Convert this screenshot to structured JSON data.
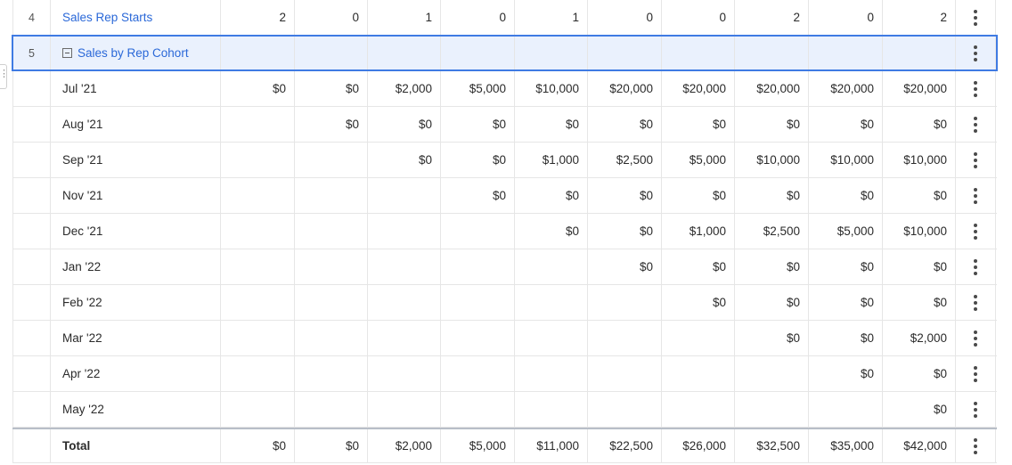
{
  "rows_top": [
    {
      "num": "4",
      "name": "Sales Rep Starts",
      "values": [
        "2",
        "0",
        "1",
        "0",
        "1",
        "0",
        "0",
        "2",
        "0",
        "2"
      ]
    },
    {
      "num": "5",
      "name": "Sales by Rep Cohort",
      "values": [
        "",
        "",
        "",
        "",
        "",
        "",
        "",
        "",
        "",
        ""
      ],
      "selected": true
    }
  ],
  "cohorts": [
    {
      "name": "Jul '21",
      "values": [
        "$0",
        "$0",
        "$2,000",
        "$5,000",
        "$10,000",
        "$20,000",
        "$20,000",
        "$20,000",
        "$20,000",
        "$20,000"
      ]
    },
    {
      "name": "Aug '21",
      "values": [
        "",
        "$0",
        "$0",
        "$0",
        "$0",
        "$0",
        "$0",
        "$0",
        "$0",
        "$0"
      ]
    },
    {
      "name": "Sep '21",
      "values": [
        "",
        "",
        "$0",
        "$0",
        "$1,000",
        "$2,500",
        "$5,000",
        "$10,000",
        "$10,000",
        "$10,000"
      ]
    },
    {
      "name": "Nov '21",
      "values": [
        "",
        "",
        "",
        "$0",
        "$0",
        "$0",
        "$0",
        "$0",
        "$0",
        "$0"
      ]
    },
    {
      "name": "Dec '21",
      "values": [
        "",
        "",
        "",
        "",
        "$0",
        "$0",
        "$1,000",
        "$2,500",
        "$5,000",
        "$10,000"
      ]
    },
    {
      "name": "Jan '22",
      "values": [
        "",
        "",
        "",
        "",
        "",
        "$0",
        "$0",
        "$0",
        "$0",
        "$0"
      ]
    },
    {
      "name": "Feb '22",
      "values": [
        "",
        "",
        "",
        "",
        "",
        "",
        "$0",
        "$0",
        "$0",
        "$0"
      ]
    },
    {
      "name": "Mar '22",
      "values": [
        "",
        "",
        "",
        "",
        "",
        "",
        "",
        "$0",
        "$0",
        "$2,000"
      ]
    },
    {
      "name": "Apr '22",
      "values": [
        "",
        "",
        "",
        "",
        "",
        "",
        "",
        "",
        "$0",
        "$0"
      ]
    },
    {
      "name": "May '22",
      "values": [
        "",
        "",
        "",
        "",
        "",
        "",
        "",
        "",
        "",
        "$0"
      ]
    }
  ],
  "total": {
    "name": "Total",
    "values": [
      "$0",
      "$0",
      "$2,000",
      "$5,000",
      "$11,000",
      "$22,500",
      "$26,000",
      "$32,500",
      "$35,000",
      "$42,000"
    ]
  },
  "colors": {
    "accent": "#3f7be3",
    "link": "#2a68d8",
    "selected_bg": "#eaf1fd"
  },
  "icons": {
    "row_menu": "kebab-icon",
    "collapse": "collapse-minus-icon"
  }
}
